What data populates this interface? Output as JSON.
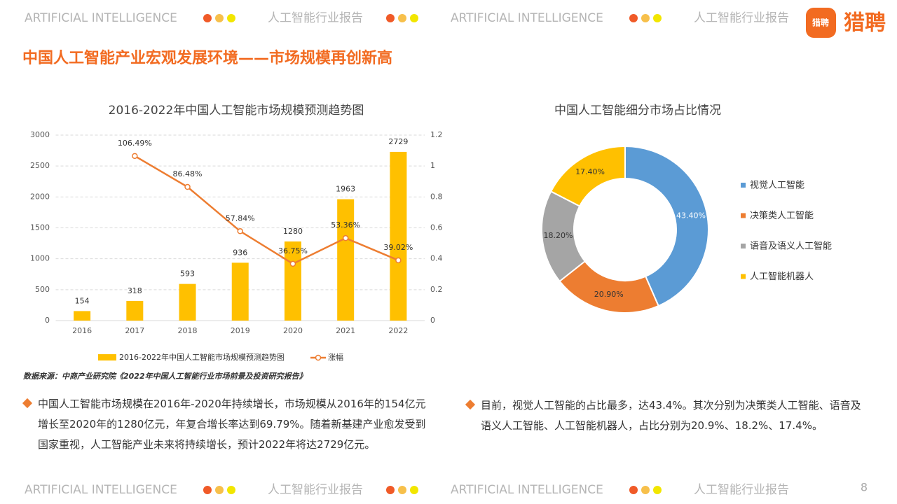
{
  "header": {
    "items": [
      "ARTIFICIAL INTELLIGENCE",
      "人工智能行业报告",
      "ARTIFICIAL INTELLIGENCE",
      "人工智能行业报告"
    ],
    "logo_badge": "猎聘",
    "logo": "猎聘"
  },
  "title": "中国人工智能产业宏观发展环境——市场规模再创新高",
  "chart_data": [
    {
      "type": "bar",
      "title": "2016-2022年中国人工智能市场规模预测趋势图",
      "categories": [
        "2016",
        "2017",
        "2018",
        "2019",
        "2020",
        "2021",
        "2022"
      ],
      "series": [
        {
          "name": "2016-2022年中国人工智能市场规模预测趋势图",
          "type": "bar",
          "color": "#ffc000",
          "values": [
            154,
            318,
            593,
            936,
            1280,
            1963,
            2729
          ]
        },
        {
          "name": "涨幅",
          "type": "line",
          "axis": "y2",
          "color": "#ed7d31",
          "values": [
            null,
            1.0649,
            0.8648,
            0.5784,
            0.3675,
            0.5336,
            0.3902
          ],
          "value_labels": [
            null,
            "106.49%",
            "86.48%",
            "57.84%",
            "36.75%",
            "53.36%",
            "39.02%"
          ]
        }
      ],
      "ylim": [
        0,
        3000
      ],
      "yticks": [
        0,
        500,
        1000,
        1500,
        2000,
        2500,
        3000
      ],
      "y2lim": [
        0,
        1.2
      ],
      "y2ticks": [
        0,
        0.2,
        0.4,
        0.6,
        0.8,
        1,
        1.2
      ],
      "grid": true,
      "legend": "bottom"
    },
    {
      "type": "donut",
      "title": "中国人工智能细分市场占比情况",
      "categories": [
        "视觉人工智能",
        "决策类人工智能",
        "语音及语义人工智能",
        "人工智能机器人"
      ],
      "values": [
        43.4,
        20.9,
        18.2,
        17.4
      ],
      "value_labels": [
        "43.40%",
        "20.90%",
        "18.20%",
        "17.40%"
      ],
      "colors": [
        "#5b9bd5",
        "#ed7d31",
        "#a5a5a5",
        "#ffc000"
      ],
      "legend": "right"
    }
  ],
  "source": "数据来源：中商产业研究院《2022年中国人工智能行业市场前景及投资研究报告》",
  "paragraphs": [
    "中国人工智能市场规模在2016年-2020年持续增长，市场规模从2016年的154亿元增长至2020年的1280亿元，年复合增长率达到69.79%。随着新基建产业愈发受到国家重视，人工智能产业未来将持续增长，预计2022年将达2729亿元。",
    "目前，视觉人工智能的占比最多，达43.4%。其次分别为决策类人工智能、语音及语义人工智能、人工智能机器人，占比分别为20.9%、18.2%、17.4%。"
  ],
  "footer": {
    "items": [
      "ARTIFICIAL INTELLIGENCE",
      "人工智能行业报告",
      "ARTIFICIAL INTELLIGENCE",
      "人工智能行业报告"
    ],
    "page": "8"
  }
}
